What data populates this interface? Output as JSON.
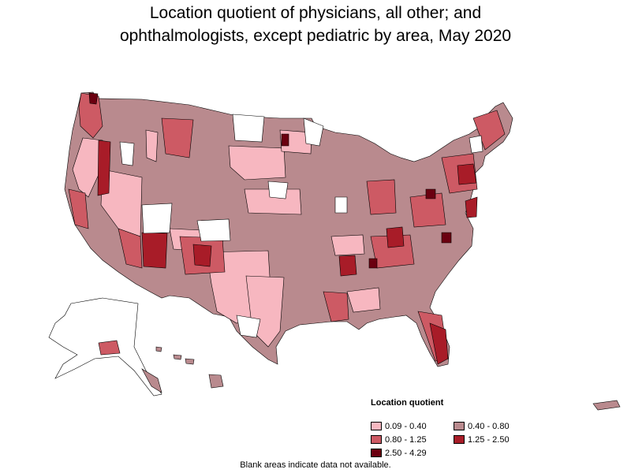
{
  "title": {
    "line1": "Location quotient of physicians, all other; and",
    "line2": "ophthalmologists, except pediatric by area, May 2020"
  },
  "legend": {
    "title": "Location quotient",
    "items": [
      {
        "label": "0.09 - 0.40",
        "color": "#f7b7c0"
      },
      {
        "label": "0.40 - 0.80",
        "color": "#b98a8e"
      },
      {
        "label": "0.80 - 1.25",
        "color": "#cd5a64"
      },
      {
        "label": "1.25 - 2.50",
        "color": "#a81c28"
      },
      {
        "label": "2.50 - 4.29",
        "color": "#6b0010"
      }
    ]
  },
  "note": "Blank areas indicate data not available.",
  "colors": {
    "blank": "#ffffff",
    "border": "#000000"
  }
}
